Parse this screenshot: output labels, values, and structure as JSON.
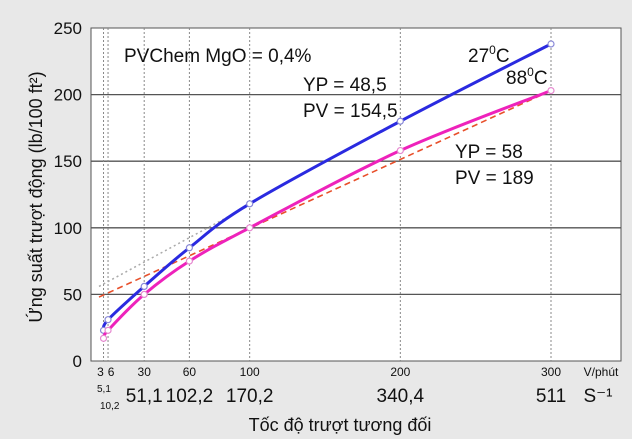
{
  "chart_data": {
    "type": "line",
    "ylabel": "Ứng suất trượt động (lb/100 ft²)",
    "xlabel": "Tốc độ trượt tương đối",
    "ylim": [
      0,
      250
    ],
    "xlim": [
      0,
      300
    ],
    "y_ticks": [
      "0",
      "50",
      "100",
      "150",
      "200",
      "250"
    ],
    "x_ticks_top": [
      {
        "x": 3,
        "label": "3"
      },
      {
        "x": 6,
        "label": "6"
      },
      {
        "x": 30,
        "label": "30"
      },
      {
        "x": 60,
        "label": "60"
      },
      {
        "x": 100,
        "label": "100"
      },
      {
        "x": 200,
        "label": "200"
      },
      {
        "x": 300,
        "label": "300"
      }
    ],
    "x_unit_top": "V/phút",
    "x_ticks_bottom_small": [
      {
        "x": 3,
        "label": "5,1"
      },
      {
        "x": 6,
        "label": "10,2"
      }
    ],
    "x_ticks_bottom": [
      {
        "x": 30,
        "label": "51,1"
      },
      {
        "x": 60,
        "label": "102,2"
      },
      {
        "x": 100,
        "label": "170,2"
      },
      {
        "x": 200,
        "label": "340,4"
      },
      {
        "x": 300,
        "label": "511"
      }
    ],
    "x_unit_bottom": "S⁻¹",
    "vertical_grid_x": [
      3,
      6,
      30,
      60,
      100,
      200,
      300
    ],
    "grid": true,
    "series": [
      {
        "name": "27°C",
        "color": "#2a2ae0",
        "x": [
          3,
          6,
          30,
          60,
          100,
          200,
          300
        ],
        "y": [
          23,
          31,
          56,
          85,
          118,
          180,
          238
        ]
      },
      {
        "name": "88°C",
        "color": "#ee22bb",
        "x": [
          3,
          6,
          30,
          60,
          100,
          200,
          300
        ],
        "y": [
          17,
          23,
          50,
          75,
          100,
          158,
          203
        ]
      }
    ],
    "fit_lines": [
      {
        "color": "#aaaaaa",
        "style": "dotted",
        "x": [
          0,
          100
        ],
        "y": [
          56,
          117
        ]
      },
      {
        "color": "#e84f2a",
        "style": "dashed",
        "x": [
          0,
          300
        ],
        "y": [
          48,
          203
        ]
      }
    ],
    "annotations": {
      "additive": "PVChem MgO = 0,4%",
      "series1_label": {
        "base": "27",
        "sup": "0",
        "tail": "C"
      },
      "series2_label": {
        "base": "88",
        "sup": "0",
        "tail": "C"
      },
      "yp1": "YP = 48,5",
      "pv1": "PV = 154,5",
      "yp2": "YP = 58",
      "pv2": "PV = 189"
    }
  }
}
